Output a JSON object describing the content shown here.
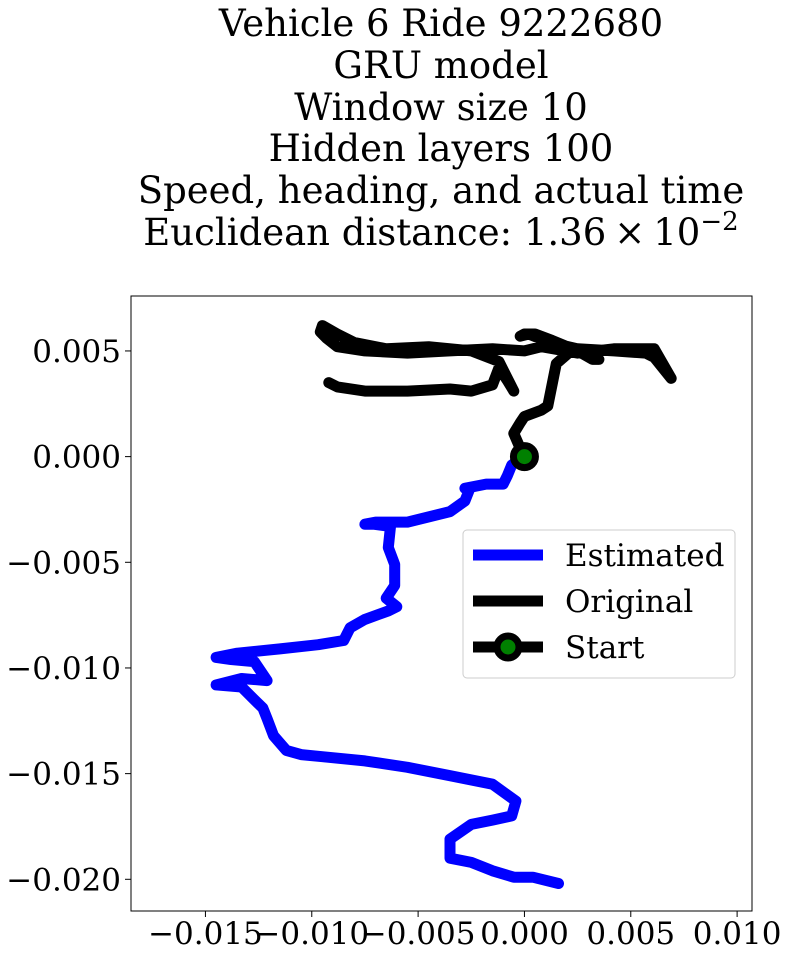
{
  "chart_data": {
    "type": "line",
    "title_lines": [
      "Vehicle 6 Ride 9222680",
      "GRU model",
      "Window size 10",
      "Hidden layers 100",
      "Speed, heading, and actual time"
    ],
    "distance_prefix": "Euclidean distance: 1.36",
    "distance_times": "×",
    "distance_base": "10",
    "distance_exponent": "−2",
    "xlim": [
      -0.0185,
      0.0107
    ],
    "ylim": [
      -0.0215,
      0.0076
    ],
    "xticks": [
      -0.015,
      -0.01,
      -0.005,
      0.0,
      0.005,
      0.01
    ],
    "xtick_labels": [
      "−0.015",
      "−0.010",
      "−0.005",
      "0.000",
      "0.005",
      "0.010"
    ],
    "yticks": [
      0.005,
      0.0,
      -0.005,
      -0.01,
      -0.015,
      -0.02
    ],
    "ytick_labels": [
      "0.005",
      "0.000",
      "−0.005",
      "−0.010",
      "−0.015",
      "−0.020"
    ],
    "grid": false,
    "legend_position": "center-right",
    "series": [
      {
        "name": "Estimated",
        "color": "#0000ff",
        "x": [
          0.0016,
          0.0004,
          -0.0005,
          -0.0015,
          -0.0025,
          -0.0035,
          -0.0035,
          -0.0025,
          -0.0015,
          -0.0006,
          -0.0004,
          -0.0015,
          -0.0035,
          -0.0055,
          -0.0075,
          -0.0095,
          -0.0105,
          -0.0112,
          -0.0118,
          -0.0121,
          -0.0123,
          -0.0127,
          -0.0133,
          -0.0145,
          -0.0133,
          -0.0121,
          -0.0127,
          -0.0138,
          -0.0145,
          -0.0135,
          -0.0115,
          -0.0097,
          -0.0085,
          -0.0082,
          -0.0075,
          -0.0064,
          -0.006,
          -0.0065,
          -0.0061,
          -0.0061,
          -0.0064,
          -0.0063,
          -0.0071,
          -0.0075,
          -0.007,
          -0.0055,
          -0.0035,
          -0.0028,
          -0.0026,
          -0.0028,
          -0.0018,
          -0.001,
          -0.0008,
          -0.0006,
          -0.0003,
          -0.0002,
          0.0
        ],
        "y": [
          -0.0202,
          -0.0199,
          -0.0199,
          -0.0196,
          -0.0192,
          -0.019,
          -0.0181,
          -0.0174,
          -0.0172,
          -0.017,
          -0.0163,
          -0.0155,
          -0.0151,
          -0.0147,
          -0.0144,
          -0.0142,
          -0.0141,
          -0.0139,
          -0.0132,
          -0.0124,
          -0.0119,
          -0.0115,
          -0.0109,
          -0.0108,
          -0.0105,
          -0.0106,
          -0.0097,
          -0.0096,
          -0.0095,
          -0.0093,
          -0.0091,
          -0.0089,
          -0.0087,
          -0.0081,
          -0.0077,
          -0.0073,
          -0.0071,
          -0.0067,
          -0.0061,
          -0.0051,
          -0.0043,
          -0.0033,
          -0.0032,
          -0.0032,
          -0.0031,
          -0.0031,
          -0.0026,
          -0.0021,
          -0.0016,
          -0.0015,
          -0.0013,
          -0.0013,
          -0.0009,
          -0.0004,
          -0.0002,
          0.0,
          0.0
        ]
      },
      {
        "name": "Original",
        "color": "#000000",
        "x": [
          0.0,
          -0.0002,
          -0.0005,
          -0.0002,
          0.0,
          0.0008,
          0.0011,
          0.0015,
          0.0023,
          0.0035,
          0.0032,
          0.0025,
          0.0013,
          0.0005,
          0.0,
          -0.0002,
          0.0002,
          0.0012,
          0.0025,
          0.0042,
          0.0057,
          0.0061,
          0.0069,
          0.0061,
          0.0042,
          0.0025,
          0.0008,
          0.0,
          -0.0015,
          -0.0035,
          -0.0055,
          -0.0075,
          -0.0088,
          -0.0093,
          -0.0096,
          -0.0095,
          -0.0088,
          -0.008,
          -0.0065,
          -0.0045,
          -0.0025,
          -0.0012,
          -0.0005,
          -0.0008,
          -0.0012,
          -0.0015,
          -0.0025,
          -0.0035,
          -0.0055,
          -0.0075,
          -0.0088,
          -0.0092
        ],
        "y": [
          0.0,
          0.0004,
          0.0011,
          0.0016,
          0.0019,
          0.0022,
          0.0024,
          0.0044,
          0.0051,
          0.0046,
          0.0046,
          0.005,
          0.0055,
          0.0058,
          0.0058,
          0.0057,
          0.0058,
          0.0054,
          0.0051,
          0.005,
          0.0049,
          0.0047,
          0.0037,
          0.0051,
          0.0051,
          0.0049,
          0.0052,
          0.005,
          0.0051,
          0.005,
          0.0049,
          0.005,
          0.0052,
          0.0056,
          0.0059,
          0.0062,
          0.0058,
          0.0054,
          0.0051,
          0.0052,
          0.005,
          0.0045,
          0.0031,
          0.0036,
          0.0042,
          0.0034,
          0.0031,
          0.0032,
          0.0031,
          0.0031,
          0.0033,
          0.0035
        ]
      }
    ],
    "start": {
      "name": "Start",
      "x": 0.0,
      "y": 0.0,
      "edge_color": "#000000",
      "face_color": "#008000"
    }
  }
}
